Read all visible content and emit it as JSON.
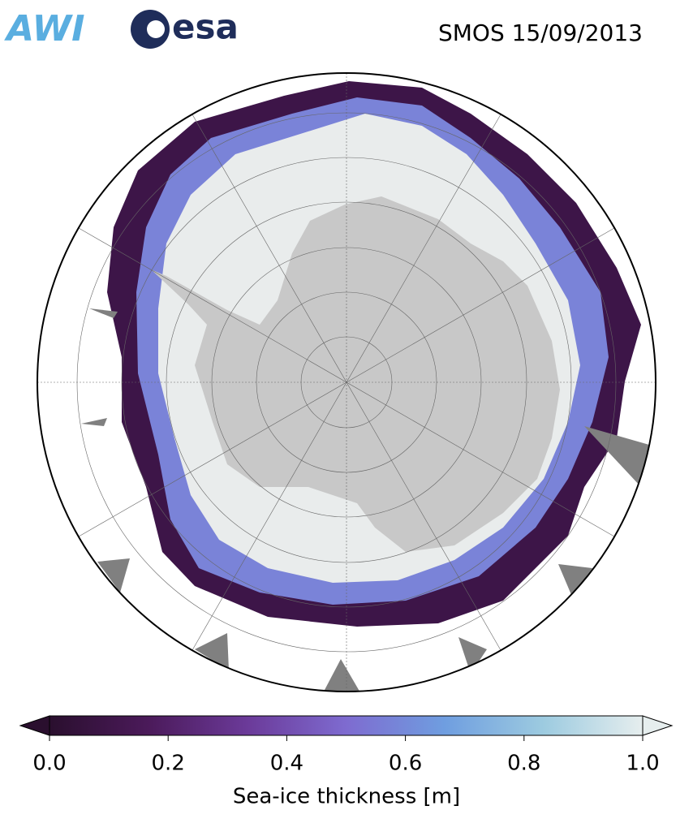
{
  "header": {
    "logos": [
      "AWI",
      "esa"
    ],
    "title": "SMOS 15/09/2013"
  },
  "colorbar": {
    "label": "Sea-ice thickness [m]",
    "lim": [
      0,
      1
    ],
    "ticks": [
      {
        "value": 0,
        "label": "0.0"
      },
      {
        "value": 0.2,
        "label": "0.2"
      },
      {
        "value": 0.4,
        "label": "0.4"
      },
      {
        "value": 0.6,
        "label": "0.6"
      },
      {
        "value": 0.8,
        "label": "0.8"
      },
      {
        "value": 1,
        "label": "1.0"
      }
    ],
    "colors": [
      "#2a0f2e",
      "#4b1a5a",
      "#6b3a99",
      "#7e6bd0",
      "#6f9ee0",
      "#9dcbe0",
      "#e6eeee"
    ],
    "extend": "both"
  }
}
